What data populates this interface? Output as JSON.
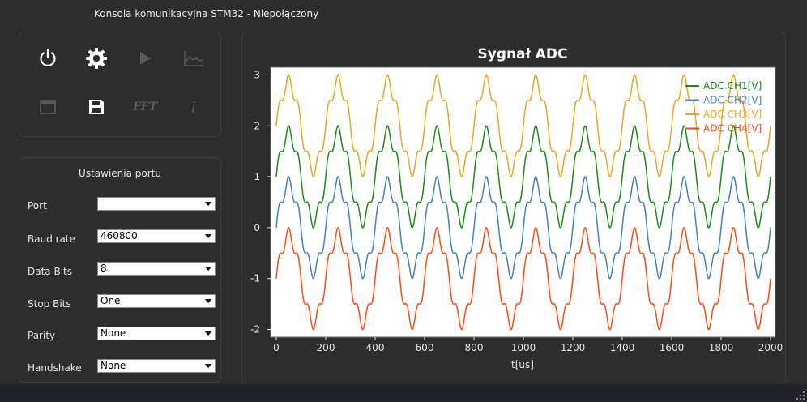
{
  "window": {
    "title": "Konsola komunikacyjna STM32 - Niepołączony"
  },
  "toolbar": {
    "buttons": [
      {
        "name": "power-icon",
        "enabled": true
      },
      {
        "name": "settings-gear-icon",
        "enabled": true
      },
      {
        "name": "play-icon",
        "enabled": false
      },
      {
        "name": "chart-icon",
        "enabled": false
      },
      {
        "name": "window-icon",
        "enabled": false
      },
      {
        "name": "save-icon",
        "enabled": true
      },
      {
        "name": "fft-icon",
        "label": "FFT",
        "enabled": false
      },
      {
        "name": "info-icon",
        "label": "i",
        "enabled": false
      }
    ]
  },
  "port_settings": {
    "title": "Ustawienia portu",
    "fields": [
      {
        "label": "Port",
        "value": ""
      },
      {
        "label": "Baud rate",
        "value": "460800"
      },
      {
        "label": "Data Bits",
        "value": "8"
      },
      {
        "label": "Stop Bits",
        "value": "One"
      },
      {
        "label": "Parity",
        "value": "None"
      },
      {
        "label": "Handshake",
        "value": "None"
      }
    ]
  },
  "chart_data": {
    "type": "line",
    "title": "Sygnał ADC",
    "xlabel": "t[us]",
    "ylabel": "",
    "xlim": [
      0,
      2000
    ],
    "ylim": [
      -2.15,
      3.15
    ],
    "x_ticks": [
      0,
      200,
      400,
      600,
      800,
      1000,
      1200,
      1400,
      1600,
      1800,
      2000
    ],
    "y_ticks": [
      -2,
      -1,
      0,
      1,
      2,
      3
    ],
    "grid": false,
    "legend_position": "top-right",
    "background": "#ffffff",
    "signal_model": {
      "period_us": 200,
      "amplitude_V": 0.85,
      "ripple_amplitude_V": 0.15,
      "ripple_period_us": 40
    },
    "series": [
      {
        "name": "ADC CH1[V]",
        "color": "#1a8c1a",
        "offset": 1.0,
        "values": [
          1.0,
          1.84,
          2.07,
          1.72,
          0.83,
          0.0,
          -0.4,
          -0.1,
          0.76,
          1.83,
          1.95
        ]
      },
      {
        "name": "ADC CH2[V]",
        "color": "#4682b4",
        "offset": 0.0,
        "values": [
          0.0,
          0.84,
          1.07,
          0.72,
          -0.17,
          -1.0,
          -1.4,
          -1.1,
          -0.24,
          0.83,
          0.95
        ]
      },
      {
        "name": "ADC CH3[V]",
        "color": "#e8a628",
        "offset": 2.0,
        "values": [
          2.0,
          2.84,
          3.07,
          2.72,
          1.83,
          1.0,
          0.6,
          0.9,
          1.76,
          2.83,
          2.95
        ]
      },
      {
        "name": "ADC CH4[V]",
        "color": "#ff4b12",
        "offset": -1.0,
        "values": [
          -1.0,
          -0.16,
          0.07,
          -0.28,
          -1.17,
          -2.0,
          -2.4,
          -2.1,
          -1.24,
          -0.17,
          -0.05
        ]
      }
    ],
    "sample_x": [
      0,
      40,
      60,
      80,
      120,
      160,
      200,
      240,
      260,
      280,
      320
    ]
  }
}
